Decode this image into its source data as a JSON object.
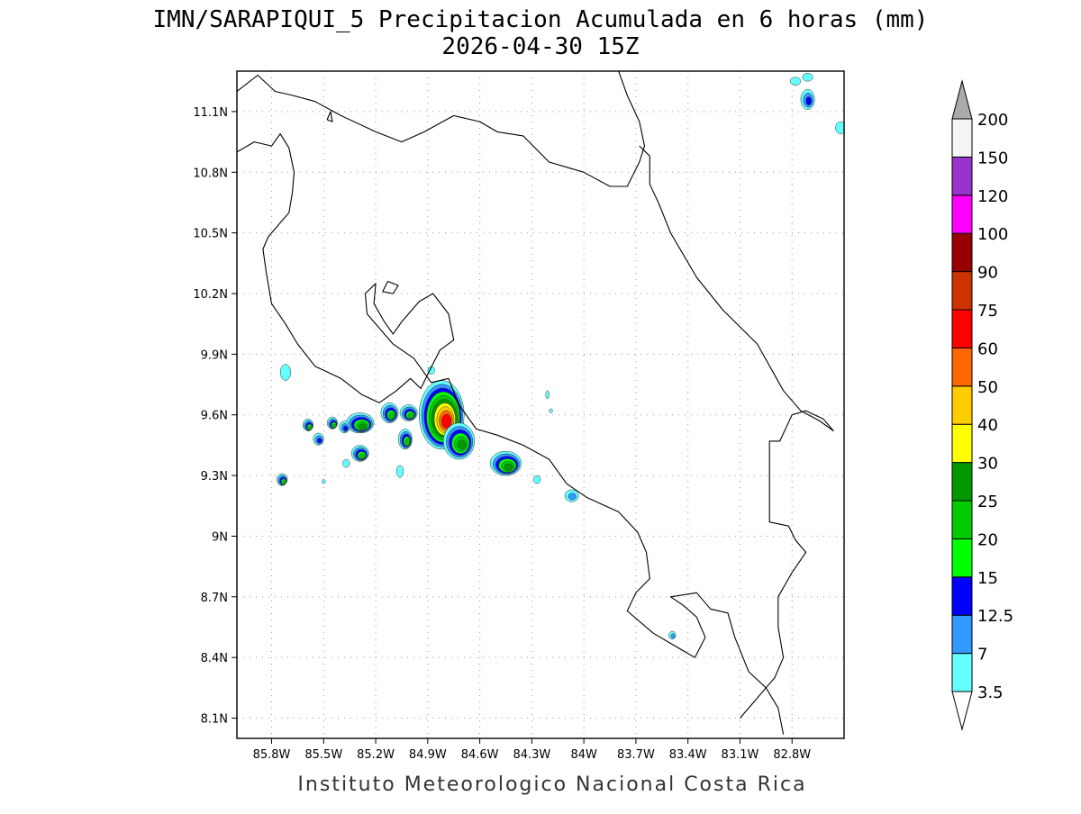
{
  "title": "IMN/SARAPIQUI_5 Precipitacion Acumulada en 6 horas (mm)",
  "subtitle": "2026-04-30 15Z",
  "footer": "Instituto Meteorologico Nacional Costa Rica",
  "map": {
    "lon_range": [
      -86.0,
      -82.5
    ],
    "lat_range": [
      8.0,
      11.3
    ],
    "lon_ticks": [
      {
        "value": -85.8,
        "label": "85.8W"
      },
      {
        "value": -85.5,
        "label": "85.5W"
      },
      {
        "value": -85.2,
        "label": "85.2W"
      },
      {
        "value": -84.9,
        "label": "84.9W"
      },
      {
        "value": -84.6,
        "label": "84.6W"
      },
      {
        "value": -84.3,
        "label": "84.3W"
      },
      {
        "value": -84.0,
        "label": "84W"
      },
      {
        "value": -83.7,
        "label": "83.7W"
      },
      {
        "value": -83.4,
        "label": "83.4W"
      },
      {
        "value": -83.1,
        "label": "83.1W"
      },
      {
        "value": -82.8,
        "label": "82.8W"
      }
    ],
    "lat_ticks": [
      {
        "value": 8.1,
        "label": "8.1N"
      },
      {
        "value": 8.4,
        "label": "8.4N"
      },
      {
        "value": 8.7,
        "label": "8.7N"
      },
      {
        "value": 9.0,
        "label": "9N"
      },
      {
        "value": 9.3,
        "label": "9.3N"
      },
      {
        "value": 9.6,
        "label": "9.6N"
      },
      {
        "value": 9.9,
        "label": "9.9N"
      },
      {
        "value": 10.2,
        "label": "10.2N"
      },
      {
        "value": 10.5,
        "label": "10.5N"
      },
      {
        "value": 10.8,
        "label": "10.8N"
      },
      {
        "value": 11.1,
        "label": "11.1N"
      }
    ],
    "grid": true
  },
  "colorbar": {
    "labels": [
      "3.5",
      "7",
      "12.5",
      "15",
      "20",
      "25",
      "30",
      "40",
      "50",
      "60",
      "75",
      "90",
      "100",
      "120",
      "150",
      "200"
    ],
    "colors": [
      "#ffffff",
      "#66ffff",
      "#3399ff",
      "#0000ff",
      "#00ff00",
      "#00cc00",
      "#009900",
      "#ffff00",
      "#ffcc00",
      "#ff6600",
      "#ff0000",
      "#cc3300",
      "#990000",
      "#ff00ff",
      "#9933cc",
      "#f5f5f5",
      "#aaaaaa"
    ]
  },
  "precip_cells": [
    {
      "lon": -84.82,
      "lat": 9.6,
      "rx": 0.13,
      "ry": 0.17,
      "level": 10
    },
    {
      "lon": -84.72,
      "lat": 9.47,
      "rx": 0.09,
      "ry": 0.09,
      "level": 6
    },
    {
      "lon": -84.45,
      "lat": 9.36,
      "rx": 0.09,
      "ry": 0.06,
      "level": 6
    },
    {
      "lon": -85.29,
      "lat": 9.56,
      "rx": 0.08,
      "ry": 0.05,
      "level": 6
    },
    {
      "lon": -85.12,
      "lat": 9.61,
      "rx": 0.05,
      "ry": 0.05,
      "level": 5
    },
    {
      "lon": -85.01,
      "lat": 9.61,
      "rx": 0.05,
      "ry": 0.04,
      "level": 5
    },
    {
      "lon": -85.03,
      "lat": 9.48,
      "rx": 0.04,
      "ry": 0.05,
      "level": 5
    },
    {
      "lon": -85.29,
      "lat": 9.41,
      "rx": 0.05,
      "ry": 0.04,
      "level": 5
    },
    {
      "lon": -85.59,
      "lat": 9.55,
      "rx": 0.03,
      "ry": 0.03,
      "level": 5
    },
    {
      "lon": -85.45,
      "lat": 9.56,
      "rx": 0.03,
      "ry": 0.03,
      "level": 5
    },
    {
      "lon": -85.74,
      "lat": 9.28,
      "rx": 0.03,
      "ry": 0.03,
      "level": 5
    },
    {
      "lon": -85.38,
      "lat": 9.54,
      "rx": 0.03,
      "ry": 0.03,
      "level": 3
    },
    {
      "lon": -85.53,
      "lat": 9.48,
      "rx": 0.03,
      "ry": 0.03,
      "level": 3
    },
    {
      "lon": -84.07,
      "lat": 9.2,
      "rx": 0.04,
      "ry": 0.03,
      "level": 2
    },
    {
      "lon": -82.71,
      "lat": 11.16,
      "rx": 0.04,
      "ry": 0.05,
      "level": 3
    },
    {
      "lon": -82.78,
      "lat": 11.25,
      "rx": 0.03,
      "ry": 0.02,
      "level": 1
    },
    {
      "lon": -82.71,
      "lat": 11.27,
      "rx": 0.03,
      "ry": 0.02,
      "level": 1
    },
    {
      "lon": -85.72,
      "lat": 9.81,
      "rx": 0.03,
      "ry": 0.04,
      "level": 1
    },
    {
      "lon": -84.27,
      "lat": 9.28,
      "rx": 0.02,
      "ry": 0.02,
      "level": 1
    },
    {
      "lon": -84.21,
      "lat": 9.7,
      "rx": 0.01,
      "ry": 0.02,
      "level": 1
    },
    {
      "lon": -84.19,
      "lat": 9.62,
      "rx": 0.01,
      "ry": 0.01,
      "level": 1
    },
    {
      "lon": -83.49,
      "lat": 8.51,
      "rx": 0.02,
      "ry": 0.02,
      "level": 2
    },
    {
      "lon": -85.06,
      "lat": 9.32,
      "rx": 0.02,
      "ry": 0.03,
      "level": 1
    },
    {
      "lon": -85.37,
      "lat": 9.36,
      "rx": 0.02,
      "ry": 0.02,
      "level": 1
    },
    {
      "lon": -85.5,
      "lat": 9.27,
      "rx": 0.01,
      "ry": 0.01,
      "level": 1
    },
    {
      "lon": -84.88,
      "lat": 9.82,
      "rx": 0.02,
      "ry": 0.02,
      "level": 1
    },
    {
      "lon": -82.52,
      "lat": 11.02,
      "rx": 0.03,
      "ry": 0.03,
      "level": 1
    }
  ],
  "coastlines": [
    [
      [
        -86.0,
        10.9
      ],
      [
        -85.9,
        10.95
      ],
      [
        -85.8,
        10.93
      ],
      [
        -85.75,
        10.99
      ],
      [
        -85.7,
        10.92
      ],
      [
        -85.67,
        10.8
      ],
      [
        -85.68,
        10.7
      ],
      [
        -85.7,
        10.6
      ],
      [
        -85.75,
        10.55
      ],
      [
        -85.82,
        10.48
      ],
      [
        -85.85,
        10.42
      ],
      [
        -85.83,
        10.3
      ],
      [
        -85.8,
        10.15
      ],
      [
        -85.72,
        10.05
      ],
      [
        -85.65,
        9.95
      ],
      [
        -85.55,
        9.84
      ],
      [
        -85.4,
        9.78
      ],
      [
        -85.28,
        9.7
      ],
      [
        -85.18,
        9.66
      ],
      [
        -85.08,
        9.72
      ],
      [
        -85.0,
        9.78
      ],
      [
        -84.94,
        9.73
      ],
      [
        -84.9,
        9.8
      ],
      [
        -84.83,
        9.92
      ],
      [
        -84.75,
        9.97
      ],
      [
        -84.78,
        10.1
      ],
      [
        -84.87,
        10.2
      ],
      [
        -84.95,
        10.16
      ],
      [
        -85.05,
        10.06
      ],
      [
        -85.1,
        10.0
      ],
      [
        -85.15,
        10.06
      ],
      [
        -85.21,
        10.15
      ],
      [
        -85.2,
        10.25
      ],
      [
        -85.26,
        10.2
      ],
      [
        -85.25,
        10.1
      ],
      [
        -85.1,
        9.95
      ],
      [
        -84.98,
        9.88
      ],
      [
        -84.88,
        9.76
      ],
      [
        -84.78,
        9.78
      ],
      [
        -84.72,
        9.65
      ],
      [
        -84.62,
        9.53
      ],
      [
        -84.5,
        9.5
      ],
      [
        -84.35,
        9.45
      ],
      [
        -84.2,
        9.38
      ],
      [
        -84.1,
        9.26
      ],
      [
        -83.98,
        9.19
      ],
      [
        -83.8,
        9.12
      ],
      [
        -83.69,
        9.02
      ],
      [
        -83.64,
        8.92
      ],
      [
        -83.62,
        8.79
      ],
      [
        -83.7,
        8.72
      ],
      [
        -83.75,
        8.63
      ],
      [
        -83.6,
        8.52
      ],
      [
        -83.5,
        8.47
      ],
      [
        -83.36,
        8.4
      ],
      [
        -83.3,
        8.5
      ],
      [
        -83.35,
        8.6
      ],
      [
        -83.43,
        8.66
      ],
      [
        -83.5,
        8.7
      ],
      [
        -83.35,
        8.72
      ],
      [
        -83.27,
        8.64
      ],
      [
        -83.17,
        8.62
      ],
      [
        -83.13,
        8.5
      ],
      [
        -83.05,
        8.33
      ],
      [
        -82.95,
        8.25
      ],
      [
        -82.88,
        8.15
      ],
      [
        -82.85,
        8.02
      ]
    ],
    [
      [
        -86.0,
        11.2
      ],
      [
        -85.88,
        11.28
      ],
      [
        -85.78,
        11.2
      ],
      [
        -85.68,
        11.18
      ],
      [
        -85.55,
        11.15
      ],
      [
        -85.4,
        11.08
      ],
      [
        -85.2,
        11.0
      ],
      [
        -85.05,
        10.95
      ],
      [
        -84.92,
        11.0
      ],
      [
        -84.75,
        11.08
      ],
      [
        -84.6,
        11.05
      ],
      [
        -84.5,
        11.0
      ],
      [
        -84.35,
        10.98
      ],
      [
        -84.2,
        10.85
      ],
      [
        -84.0,
        10.8
      ],
      [
        -83.85,
        10.73
      ],
      [
        -83.75,
        10.73
      ],
      [
        -83.68,
        10.85
      ],
      [
        -83.65,
        10.93
      ],
      [
        -83.68,
        11.05
      ],
      [
        -83.75,
        11.18
      ],
      [
        -83.8,
        11.3
      ]
    ],
    [
      [
        -83.68,
        10.93
      ],
      [
        -83.62,
        10.88
      ],
      [
        -83.62,
        10.74
      ],
      [
        -83.57,
        10.65
      ],
      [
        -83.5,
        10.5
      ],
      [
        -83.35,
        10.28
      ],
      [
        -83.2,
        10.12
      ],
      [
        -83.0,
        9.95
      ],
      [
        -82.85,
        9.72
      ],
      [
        -82.75,
        9.62
      ],
      [
        -82.64,
        9.57
      ],
      [
        -82.56,
        9.52
      ]
    ],
    [
      [
        -85.48,
        11.06
      ],
      [
        -85.45,
        11.05
      ],
      [
        -85.46,
        11.1
      ],
      [
        -85.48,
        11.06
      ]
    ],
    [
      [
        -85.13,
        10.26
      ],
      [
        -85.07,
        10.24
      ],
      [
        -85.1,
        10.2
      ],
      [
        -85.16,
        10.21
      ],
      [
        -85.13,
        10.26
      ]
    ]
  ],
  "borders": [
    [
      [
        -82.56,
        9.52
      ],
      [
        -82.62,
        9.58
      ],
      [
        -82.72,
        9.62
      ],
      [
        -82.8,
        9.6
      ],
      [
        -82.87,
        9.47
      ],
      [
        -82.93,
        9.47
      ],
      [
        -82.93,
        9.25
      ],
      [
        -82.93,
        9.07
      ],
      [
        -82.82,
        9.05
      ],
      [
        -82.78,
        8.98
      ],
      [
        -82.72,
        8.92
      ],
      [
        -82.8,
        8.82
      ],
      [
        -82.88,
        8.7
      ],
      [
        -82.88,
        8.55
      ],
      [
        -82.85,
        8.4
      ],
      [
        -82.9,
        8.3
      ],
      [
        -83.0,
        8.2
      ],
      [
        -83.1,
        8.1
      ]
    ]
  ]
}
